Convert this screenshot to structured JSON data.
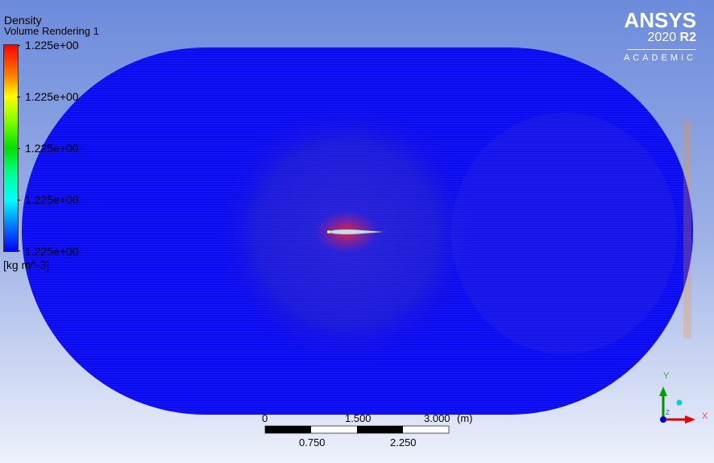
{
  "legend": {
    "variable": "Density",
    "object": "Volume Rendering 1",
    "ticks": [
      "1.225e+00",
      "1.225e+00",
      "1.225e+00",
      "1.225e+00",
      "1.225e+00"
    ],
    "units": "[kg m^-3]"
  },
  "logo": {
    "brand": "ANSYS",
    "version": "2020",
    "release": "R2",
    "edition": "ACADEMIC"
  },
  "scale_bar": {
    "top_labels": [
      "0",
      "1.500",
      "3.000"
    ],
    "unit": "(m)",
    "bottom_labels": [
      "0.750",
      "2.250"
    ]
  },
  "axes": {
    "x": "X",
    "y": "Y",
    "z": "Z"
  },
  "colors": {
    "domain": "#0a0af0",
    "high": "#ff0000",
    "low": "#0000ff"
  }
}
